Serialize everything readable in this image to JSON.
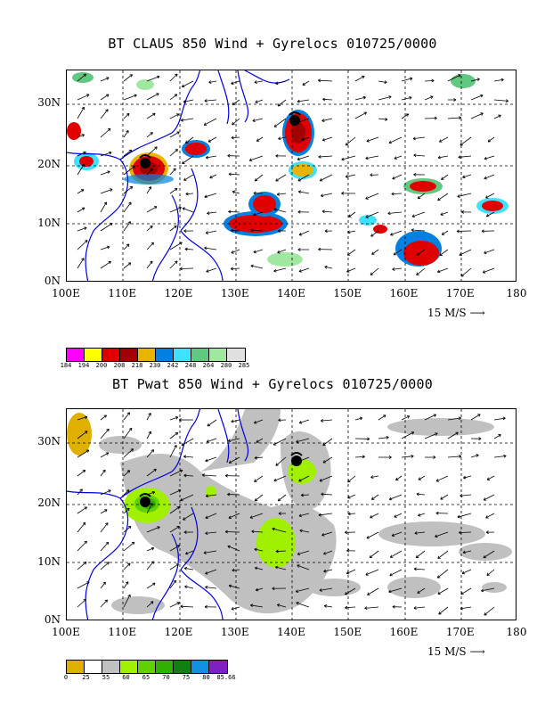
{
  "maps": [
    {
      "id": "claus",
      "title": "BT CLAUS 850 Wind + Gyrelocs 010725/0000",
      "legend": {
        "colors": [
          "#ff00ff",
          "#ffff00",
          "#e00000",
          "#a00000",
          "#e8b400",
          "#0080e0",
          "#40e0ff",
          "#60c880",
          "#a0e8a0",
          "#e0e0e0"
        ],
        "labels": [
          "184",
          "194",
          "200",
          "208",
          "218",
          "230",
          "242",
          "248",
          "264",
          "280",
          "285"
        ]
      }
    },
    {
      "id": "pwat",
      "title": "BT Pwat 850 Wind + Gyrelocs 010725/0000",
      "legend": {
        "colors": [
          "#e0b000",
          "#ffffff",
          "#c0c0c0",
          "#a0f000",
          "#60d000",
          "#30b000",
          "#108010",
          "#1090e0",
          "#8020c0"
        ],
        "labels": [
          "0",
          "25",
          "55",
          "60",
          "65",
          "70",
          "75",
          "80",
          "85.66"
        ]
      }
    }
  ],
  "x_labels": [
    "100E",
    "110E",
    "120E",
    "130E",
    "140E",
    "150E",
    "160E",
    "170E",
    "180"
  ],
  "y_labels": [
    "30N",
    "20N",
    "10N",
    "0N"
  ],
  "scale_label": "15 M/S",
  "scale_arrow": "⟶",
  "axis": {
    "lon_range": [
      100,
      180
    ],
    "lat_range": [
      0,
      35
    ]
  }
}
